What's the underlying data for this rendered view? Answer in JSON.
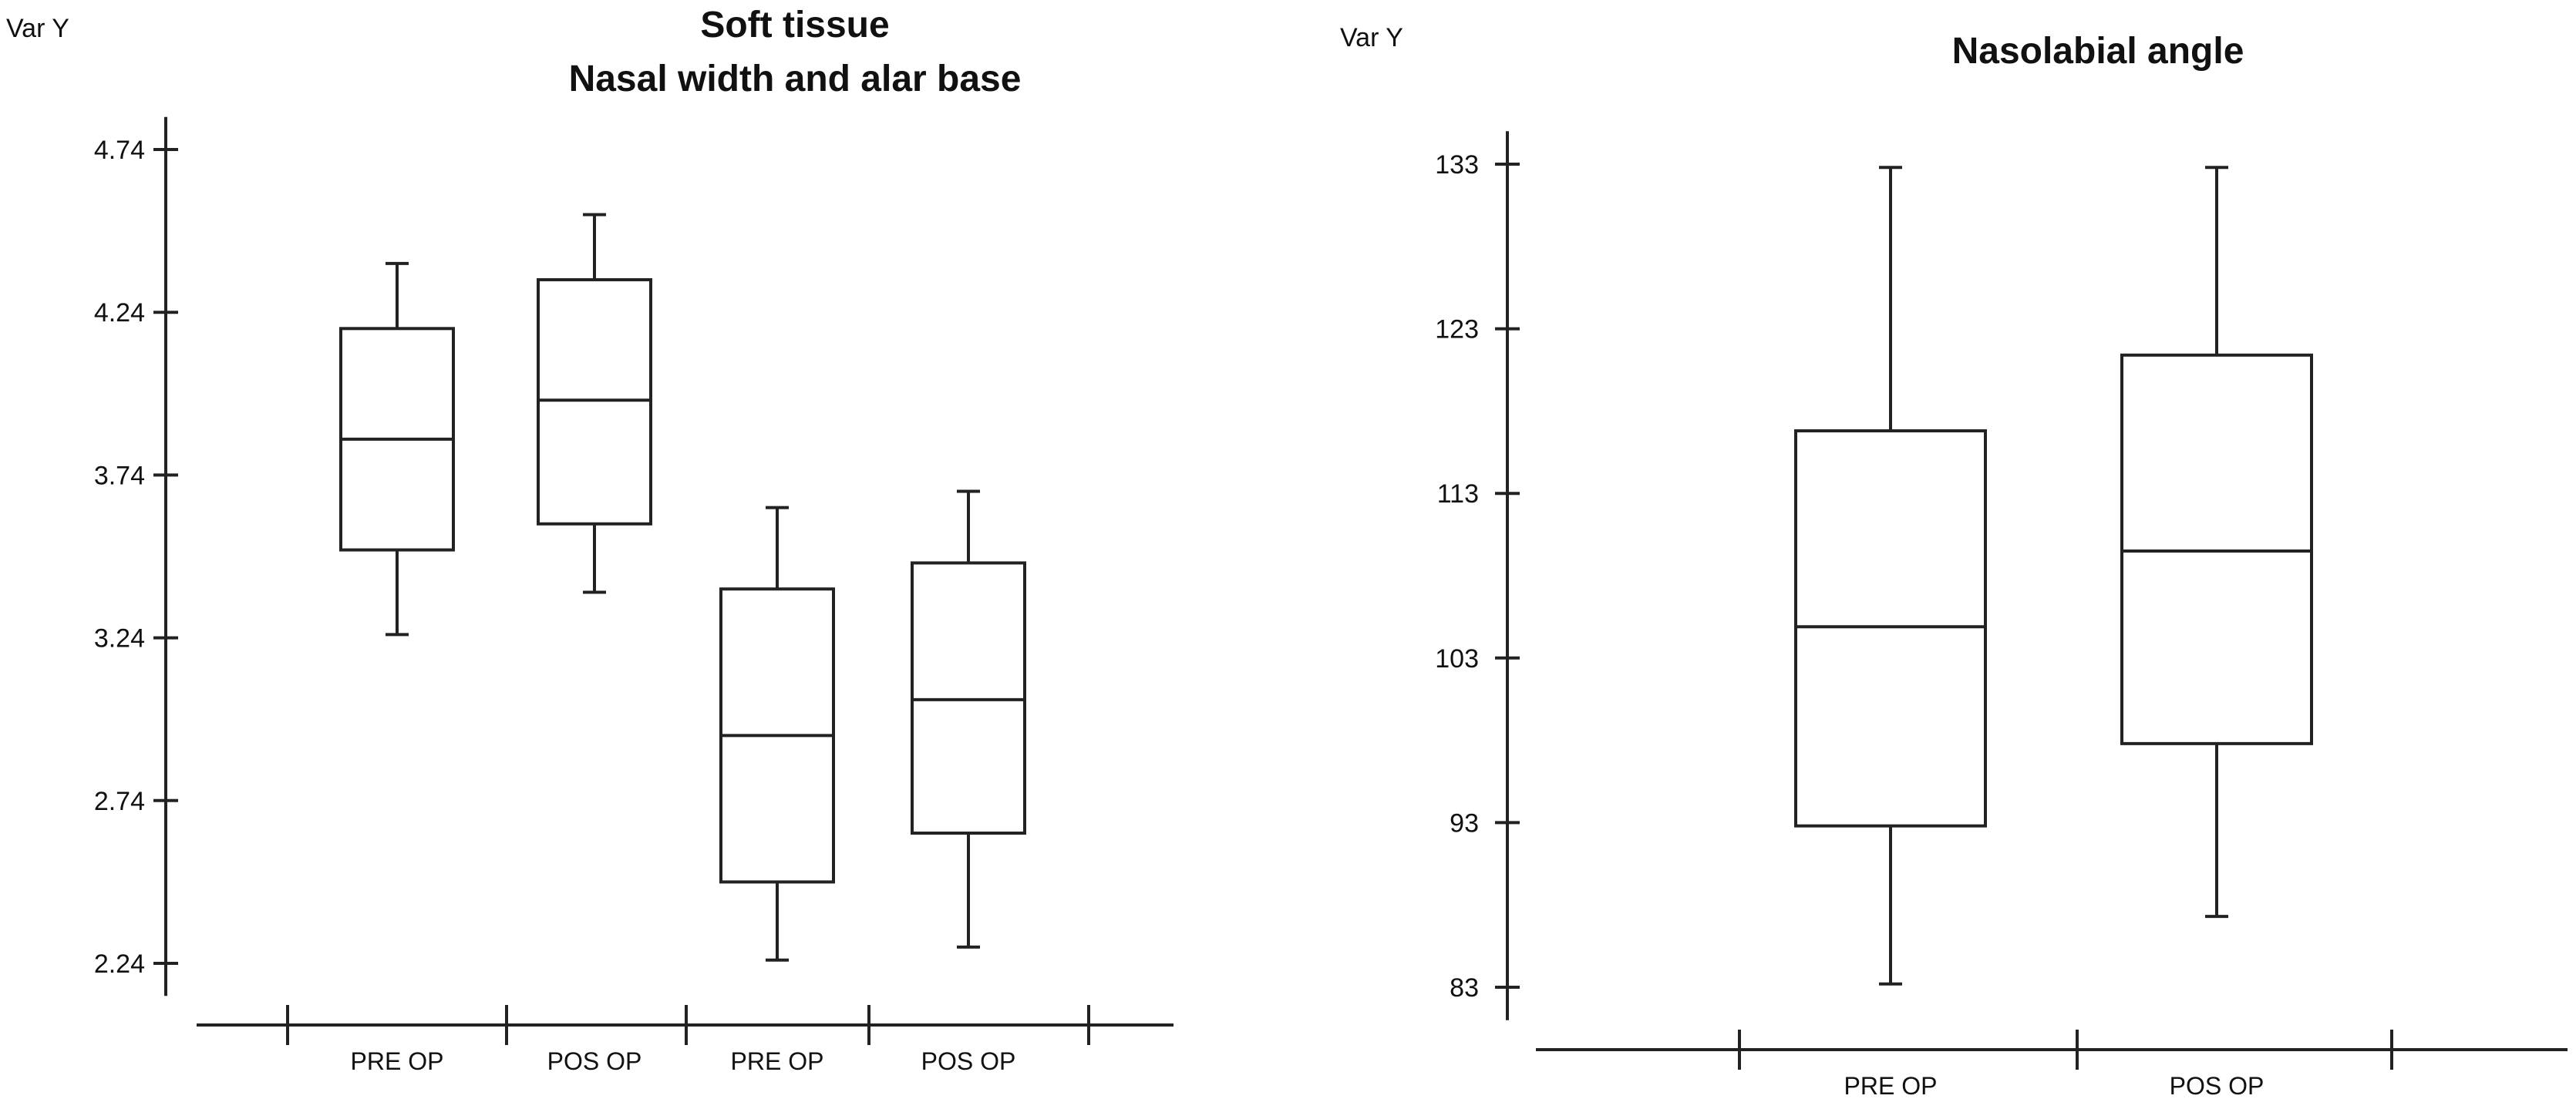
{
  "chart_data": [
    {
      "type": "box",
      "title": "Soft tissue",
      "subtitle": "Nasal width and alar base",
      "ylabel": "Var Y",
      "ylim": [
        2.14,
        4.84
      ],
      "yticks": [
        "4.74",
        "4.24",
        "3.74",
        "3.24",
        "2.74",
        "2.24"
      ],
      "categories": [
        "PRE OP",
        "POS OP",
        "PRE OP",
        "POS OP"
      ],
      "boxes": [
        {
          "min": 3.25,
          "q1": 3.51,
          "median": 3.85,
          "q3": 4.19,
          "max": 4.39
        },
        {
          "min": 3.38,
          "q1": 3.59,
          "median": 3.97,
          "q3": 4.34,
          "max": 4.54
        },
        {
          "min": 2.25,
          "q1": 2.49,
          "median": 2.94,
          "q3": 3.39,
          "max": 3.64
        },
        {
          "min": 2.29,
          "q1": 2.64,
          "median": 3.05,
          "q3": 3.47,
          "max": 3.69
        }
      ]
    },
    {
      "type": "box",
      "title": "Nasolabial angle",
      "ylabel": "Var Y",
      "ylim": [
        81,
        135
      ],
      "yticks": [
        "133",
        "123",
        "113",
        "103",
        "93",
        "83"
      ],
      "categories": [
        "PRE OP",
        "POS OP"
      ],
      "boxes": [
        {
          "min": 83.2,
          "q1": 92.8,
          "median": 104.9,
          "q3": 116.8,
          "max": 132.8
        },
        {
          "min": 87.3,
          "q1": 97.8,
          "median": 109.5,
          "q3": 121.4,
          "max": 132.8
        }
      ]
    }
  ]
}
